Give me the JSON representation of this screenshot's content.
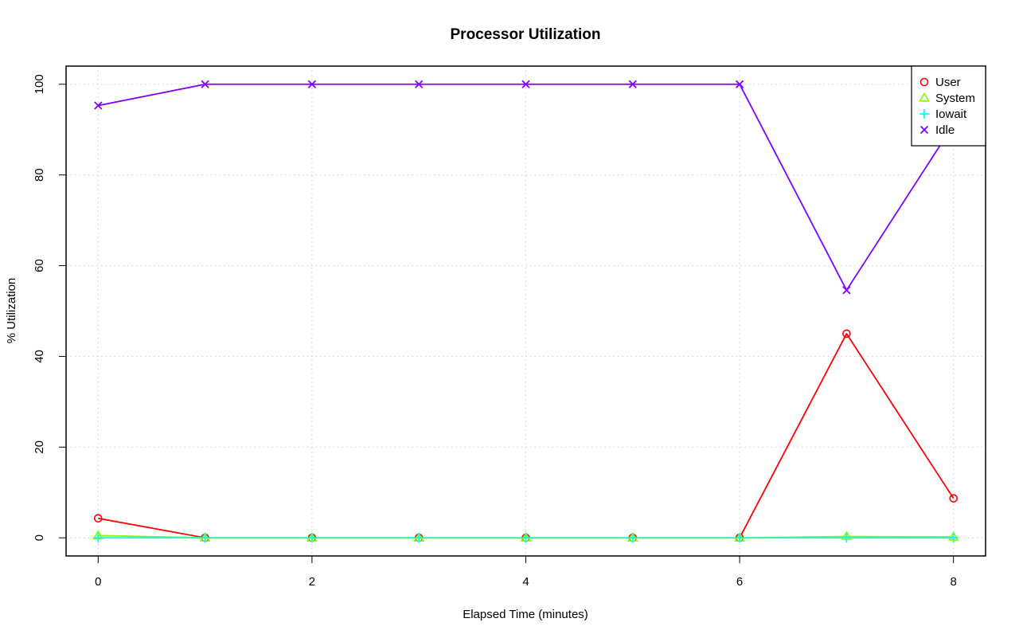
{
  "chart_data": {
    "type": "line",
    "title": "Processor Utilization",
    "xlabel": "Elapsed Time (minutes)",
    "ylabel": "% Utilization",
    "x": [
      0,
      1,
      2,
      3,
      4,
      5,
      6,
      7,
      8
    ],
    "xlim": [
      -0.3,
      8.3
    ],
    "ylim": [
      -4,
      104
    ],
    "xticks": [
      0,
      2,
      4,
      6,
      8
    ],
    "yticks": [
      0,
      20,
      40,
      60,
      80,
      100
    ],
    "grid": true,
    "legend_position": "top-right",
    "series": [
      {
        "name": "User",
        "color": "#ff0000",
        "marker": "circle",
        "values": [
          4.3,
          0,
          0,
          0,
          0,
          0,
          0,
          45.0,
          8.7
        ]
      },
      {
        "name": "System",
        "color": "#80ff00",
        "marker": "triangle",
        "values": [
          0.5,
          0,
          0,
          0,
          0,
          0,
          0,
          0.3,
          0.2
        ]
      },
      {
        "name": "Iowait",
        "color": "#00ffff",
        "marker": "plus",
        "values": [
          0,
          0,
          0,
          0,
          0,
          0,
          0,
          0,
          0
        ]
      },
      {
        "name": "Idle",
        "color": "#8000ff",
        "marker": "cross",
        "values": [
          95.3,
          100,
          100,
          100,
          100,
          100,
          100,
          54.6,
          91.1
        ]
      }
    ]
  }
}
